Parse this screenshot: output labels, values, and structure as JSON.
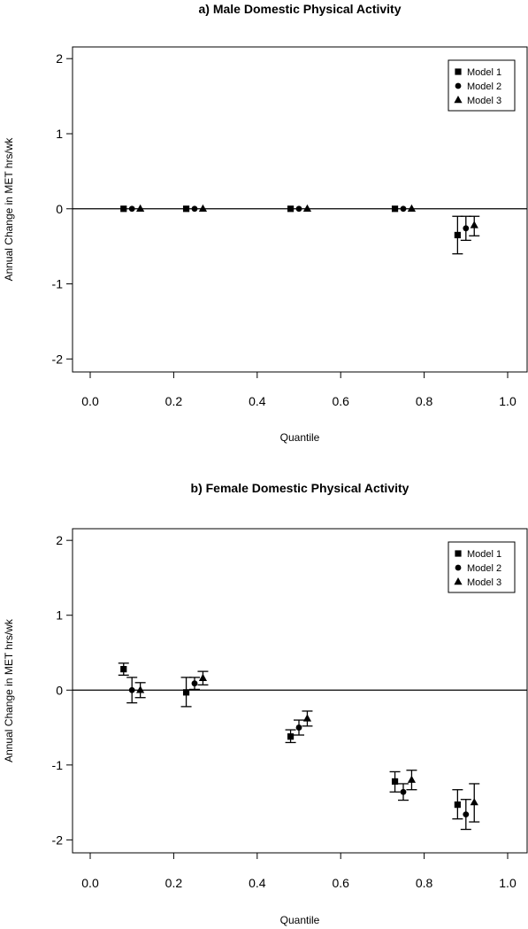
{
  "chart_data": [
    {
      "type": "scatter",
      "title": "a) Male Domestic Physical Activity",
      "xlabel": "Quantile",
      "ylabel": "Annual Change in MET hrs/wk",
      "xlim": [
        0.0,
        1.0
      ],
      "ylim": [
        -2,
        2
      ],
      "xticks": [
        "0.0",
        "0.2",
        "0.4",
        "0.6",
        "0.8",
        "1.0"
      ],
      "xtick_values": [
        0.0,
        0.2,
        0.4,
        0.6,
        0.8,
        1.0
      ],
      "yticks": [
        "-2",
        "-1",
        "0",
        "1",
        "2"
      ],
      "ytick_values": [
        -2,
        -1,
        0,
        1,
        2
      ],
      "reference_line_y": 0,
      "legend_position": "top-right",
      "legend": [
        "Model 1",
        "Model 2",
        "Model 3"
      ],
      "series": [
        {
          "name": "Model 1",
          "marker": "square",
          "x": [
            0.08,
            0.23,
            0.48,
            0.73,
            0.88
          ],
          "y": [
            0,
            0,
            0,
            0,
            -0.35
          ],
          "lower": [
            0,
            0,
            0,
            0,
            -0.6
          ],
          "upper": [
            0,
            0,
            0,
            0,
            -0.1
          ]
        },
        {
          "name": "Model 2",
          "marker": "circle",
          "x": [
            0.1,
            0.25,
            0.5,
            0.75,
            0.9
          ],
          "y": [
            0,
            0,
            0,
            0,
            -0.26
          ],
          "lower": [
            0,
            0,
            0,
            0,
            -0.42
          ],
          "upper": [
            0,
            0,
            0,
            0,
            -0.1
          ]
        },
        {
          "name": "Model 3",
          "marker": "triangle",
          "x": [
            0.12,
            0.27,
            0.52,
            0.77,
            0.92
          ],
          "y": [
            0,
            0,
            0,
            0,
            -0.22
          ],
          "lower": [
            0,
            0,
            0,
            0,
            -0.36
          ],
          "upper": [
            0,
            0,
            0,
            0,
            -0.1
          ]
        }
      ]
    },
    {
      "type": "scatter",
      "title": "b) Female Domestic Physical Activity",
      "xlabel": "Quantile",
      "ylabel": "Annual Change in MET hrs/wk",
      "xlim": [
        0.0,
        1.0
      ],
      "ylim": [
        -2,
        2
      ],
      "xticks": [
        "0.0",
        "0.2",
        "0.4",
        "0.6",
        "0.8",
        "1.0"
      ],
      "xtick_values": [
        0.0,
        0.2,
        0.4,
        0.6,
        0.8,
        1.0
      ],
      "yticks": [
        "-2",
        "-1",
        "0",
        "1",
        "2"
      ],
      "ytick_values": [
        -2,
        -1,
        0,
        1,
        2
      ],
      "reference_line_y": 0,
      "legend_position": "top-right",
      "legend": [
        "Model 1",
        "Model 2",
        "Model 3"
      ],
      "series": [
        {
          "name": "Model 1",
          "marker": "square",
          "x": [
            0.08,
            0.23,
            0.48,
            0.73,
            0.88
          ],
          "y": [
            0.28,
            -0.03,
            -0.62,
            -1.22,
            -1.53
          ],
          "lower": [
            0.2,
            -0.22,
            -0.7,
            -1.36,
            -1.72
          ],
          "upper": [
            0.36,
            0.17,
            -0.53,
            -1.09,
            -1.33
          ]
        },
        {
          "name": "Model 2",
          "marker": "circle",
          "x": [
            0.1,
            0.25,
            0.5,
            0.75,
            0.9
          ],
          "y": [
            0.0,
            0.09,
            -0.5,
            -1.36,
            -1.66
          ],
          "lower": [
            -0.17,
            0.01,
            -0.6,
            -1.47,
            -1.86
          ],
          "upper": [
            0.17,
            0.17,
            -0.4,
            -1.25,
            -1.46
          ]
        },
        {
          "name": "Model 3",
          "marker": "triangle",
          "x": [
            0.12,
            0.27,
            0.52,
            0.77,
            0.92
          ],
          "y": [
            0.0,
            0.16,
            -0.38,
            -1.2,
            -1.5
          ],
          "lower": [
            -0.1,
            0.07,
            -0.48,
            -1.33,
            -1.76
          ],
          "upper": [
            0.1,
            0.25,
            -0.28,
            -1.07,
            -1.25
          ]
        }
      ]
    }
  ]
}
